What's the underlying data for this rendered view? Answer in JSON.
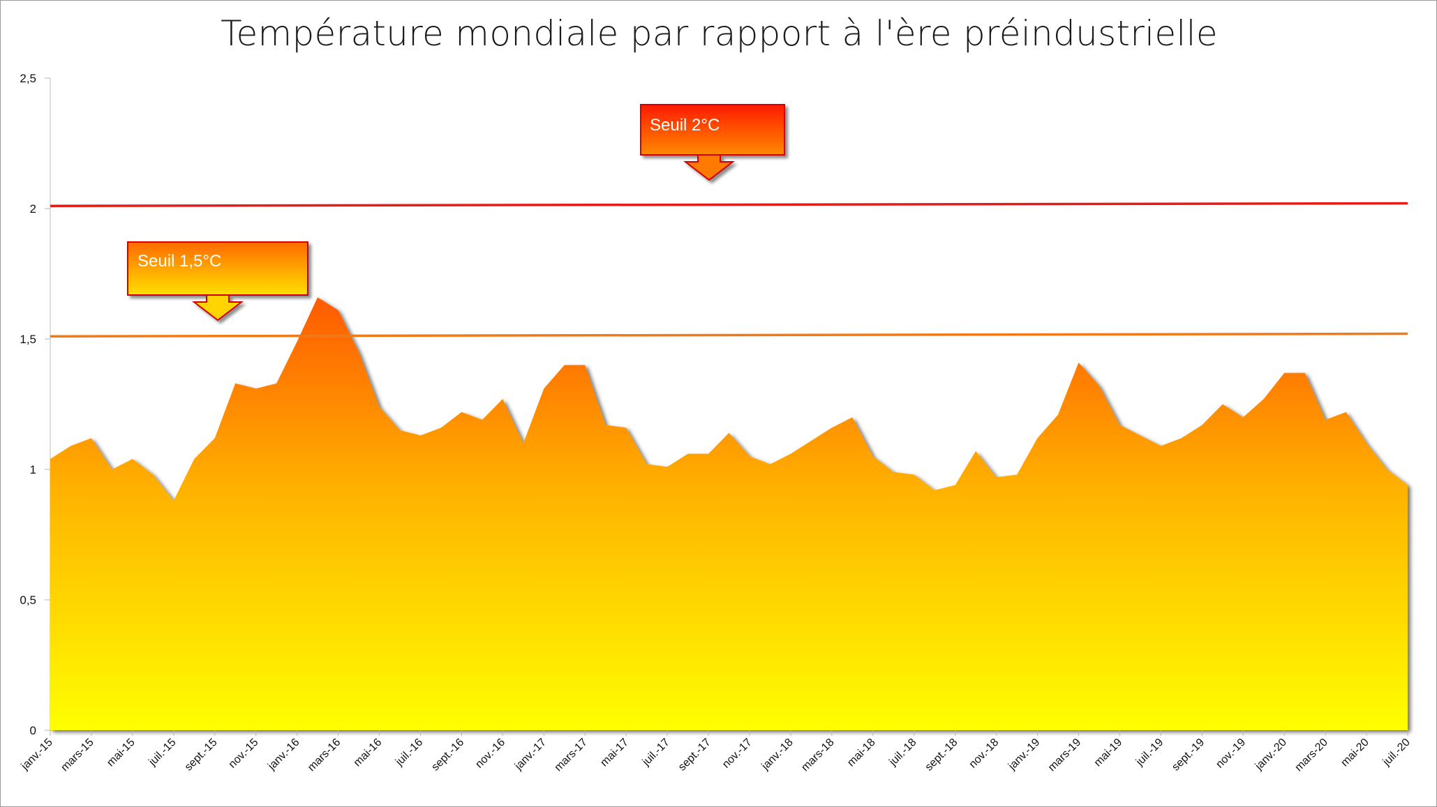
{
  "chart_data": {
    "type": "area",
    "title": "Température mondiale par rapport à l'ère préindustrielle",
    "xlabel": "",
    "ylabel": "",
    "ylim": [
      0,
      2.5
    ],
    "yticks": [
      "0",
      "0,5",
      "1",
      "1,5",
      "2",
      "2,5"
    ],
    "ytick_values": [
      0,
      0.5,
      1,
      1.5,
      2,
      2.5
    ],
    "x_tick_labels": [
      "janv.-15",
      "mars-15",
      "mai-15",
      "juil.-15",
      "sept.-15",
      "nov.-15",
      "janv.-16",
      "mars-16",
      "mai-16",
      "juil.-16",
      "sept.-16",
      "nov.-16",
      "janv.-17",
      "mars-17",
      "mai-17",
      "juil.-17",
      "sept.-17",
      "nov.-17",
      "janv.-18",
      "mars-18",
      "mai-18",
      "juil.-18",
      "sept.-18",
      "nov.-18",
      "janv.-19",
      "mars-19",
      "mai-19",
      "juil.-19",
      "sept.-19",
      "nov.-19",
      "janv.-20",
      "mars-20",
      "mai-20",
      "juil.-20"
    ],
    "x_start": "2015-01",
    "x_end": "2020-07",
    "series": [
      {
        "values": [
          1.04,
          1.09,
          1.12,
          1.0,
          1.04,
          0.98,
          0.88,
          1.04,
          1.12,
          1.33,
          1.31,
          1.33,
          1.49,
          1.66,
          1.61,
          1.45,
          1.24,
          1.15,
          1.13,
          1.16,
          1.22,
          1.19,
          1.27,
          1.1,
          1.31,
          1.4,
          1.4,
          1.17,
          1.16,
          1.02,
          1.01,
          1.06,
          1.06,
          1.14,
          1.05,
          1.02,
          1.06,
          1.11,
          1.16,
          1.2,
          1.05,
          0.99,
          0.98,
          0.92,
          0.94,
          1.07,
          0.97,
          0.98,
          1.12,
          1.21,
          1.41,
          1.32,
          1.17,
          1.13,
          1.09,
          1.12,
          1.17,
          1.25,
          1.2,
          1.27,
          1.37,
          1.37,
          1.19,
          1.22,
          1.1,
          1.0,
          0.94
        ]
      }
    ],
    "reference_lines": [
      {
        "label": "Seuil 2°C",
        "start": 2.01,
        "end": 2.02,
        "color": "#e41b17"
      },
      {
        "label": "Seuil 1,5°C",
        "start": 1.51,
        "end": 1.52,
        "color": "#f07a17"
      }
    ],
    "fill_gradient": {
      "top": "#ff5a00",
      "middle": "#ffb300",
      "bottom": "#ffff00"
    },
    "grid": false,
    "legend": "none"
  }
}
